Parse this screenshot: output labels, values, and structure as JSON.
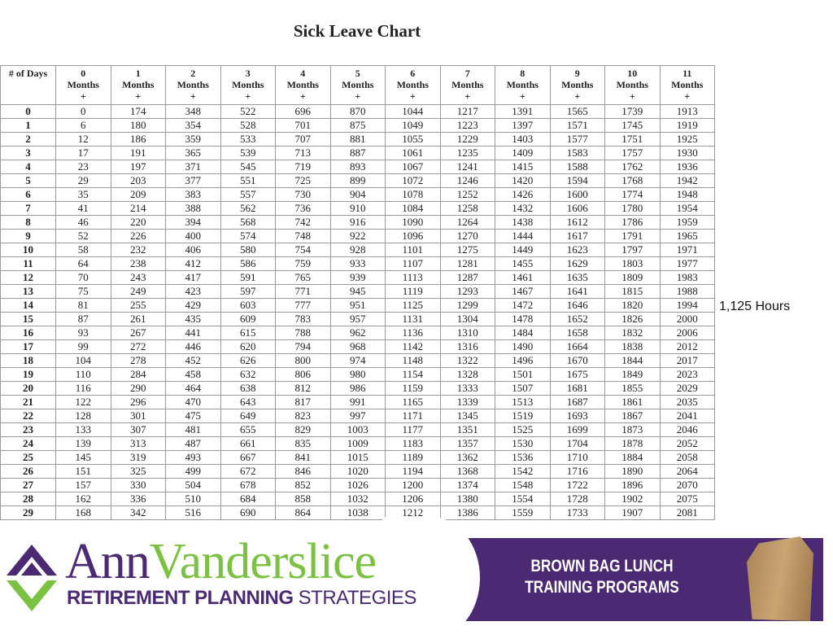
{
  "title": "Sick Leave Chart",
  "table": {
    "headers": [
      [
        "# of Days"
      ],
      [
        "0",
        "Months",
        "+"
      ],
      [
        "1",
        "Months",
        "+"
      ],
      [
        "2",
        "Months",
        "+"
      ],
      [
        "3",
        "Months",
        "+"
      ],
      [
        "4",
        "Months",
        "+"
      ],
      [
        "5",
        "Months",
        "+"
      ],
      [
        "6",
        "Months",
        "+"
      ],
      [
        "7",
        "Months",
        "+"
      ],
      [
        "8",
        "Months",
        "+"
      ],
      [
        "9",
        "Months",
        "+"
      ],
      [
        "10",
        "Months",
        "+"
      ],
      [
        "11",
        "Months",
        "+"
      ]
    ],
    "rows": [
      [
        "0",
        0,
        174,
        348,
        522,
        696,
        870,
        1044,
        1217,
        1391,
        1565,
        1739,
        1913
      ],
      [
        "1",
        6,
        180,
        354,
        528,
        701,
        875,
        1049,
        1223,
        1397,
        1571,
        1745,
        1919
      ],
      [
        "2",
        12,
        186,
        359,
        533,
        707,
        881,
        1055,
        1229,
        1403,
        1577,
        1751,
        1925
      ],
      [
        "3",
        17,
        191,
        365,
        539,
        713,
        887,
        1061,
        1235,
        1409,
        1583,
        1757,
        1930
      ],
      [
        "4",
        23,
        197,
        371,
        545,
        719,
        893,
        1067,
        1241,
        1415,
        1588,
        1762,
        1936
      ],
      [
        "5",
        29,
        203,
        377,
        551,
        725,
        899,
        1072,
        1246,
        1420,
        1594,
        1768,
        1942
      ],
      [
        "6",
        35,
        209,
        383,
        557,
        730,
        904,
        1078,
        1252,
        1426,
        1600,
        1774,
        1948
      ],
      [
        "7",
        41,
        214,
        388,
        562,
        736,
        910,
        1084,
        1258,
        1432,
        1606,
        1780,
        1954
      ],
      [
        "8",
        46,
        220,
        394,
        568,
        742,
        916,
        1090,
        1264,
        1438,
        1612,
        1786,
        1959
      ],
      [
        "9",
        52,
        226,
        400,
        574,
        748,
        922,
        1096,
        1270,
        1444,
        1617,
        1791,
        1965
      ],
      [
        "10",
        58,
        232,
        406,
        580,
        754,
        928,
        1101,
        1275,
        1449,
        1623,
        1797,
        1971
      ],
      [
        "11",
        64,
        238,
        412,
        586,
        759,
        933,
        1107,
        1281,
        1455,
        1629,
        1803,
        1977
      ],
      [
        "12",
        70,
        243,
        417,
        591,
        765,
        939,
        1113,
        1287,
        1461,
        1635,
        1809,
        1983
      ],
      [
        "13",
        75,
        249,
        423,
        597,
        771,
        945,
        1119,
        1293,
        1467,
        1641,
        1815,
        1988
      ],
      [
        "14",
        81,
        255,
        429,
        603,
        777,
        951,
        1125,
        1299,
        1472,
        1646,
        1820,
        1994
      ],
      [
        "15",
        87,
        261,
        435,
        609,
        783,
        957,
        1131,
        1304,
        1478,
        1652,
        1826,
        2000
      ],
      [
        "16",
        93,
        267,
        441,
        615,
        788,
        962,
        1136,
        1310,
        1484,
        1658,
        1832,
        2006
      ],
      [
        "17",
        99,
        272,
        446,
        620,
        794,
        968,
        1142,
        1316,
        1490,
        1664,
        1838,
        2012
      ],
      [
        "18",
        104,
        278,
        452,
        626,
        800,
        974,
        1148,
        1322,
        1496,
        1670,
        1844,
        2017
      ],
      [
        "19",
        110,
        284,
        458,
        632,
        806,
        980,
        1154,
        1328,
        1501,
        1675,
        1849,
        2023
      ],
      [
        "20",
        116,
        290,
        464,
        638,
        812,
        986,
        1159,
        1333,
        1507,
        1681,
        1855,
        2029
      ],
      [
        "21",
        122,
        296,
        470,
        643,
        817,
        991,
        1165,
        1339,
        1513,
        1687,
        1861,
        2035
      ],
      [
        "22",
        128,
        301,
        475,
        649,
        823,
        997,
        1171,
        1345,
        1519,
        1693,
        1867,
        2041
      ],
      [
        "23",
        133,
        307,
        481,
        655,
        829,
        1003,
        1177,
        1351,
        1525,
        1699,
        1873,
        2046
      ],
      [
        "24",
        139,
        313,
        487,
        661,
        835,
        1009,
        1183,
        1357,
        1530,
        1704,
        1878,
        2052
      ],
      [
        "25",
        145,
        319,
        493,
        667,
        841,
        1015,
        1189,
        1362,
        1536,
        1710,
        1884,
        2058
      ],
      [
        "26",
        151,
        325,
        499,
        672,
        846,
        1020,
        1194,
        1368,
        1542,
        1716,
        1890,
        2064
      ],
      [
        "27",
        157,
        330,
        504,
        678,
        852,
        1026,
        1200,
        1374,
        1548,
        1722,
        1896,
        2070
      ],
      [
        "28",
        162,
        336,
        510,
        684,
        858,
        1032,
        1206,
        1380,
        1554,
        1728,
        1902,
        2075
      ],
      [
        "29",
        168,
        342,
        516,
        690,
        864,
        1038,
        1212,
        1386,
        1559,
        1733,
        1907,
        2081
      ]
    ]
  },
  "note": "1,125 Hours",
  "banner": {
    "logo_first": "Ann",
    "logo_last": "Vanderslice",
    "tagline_bold": "RETIREMENT PLANNING",
    "tagline_regular": "STRATEGIES",
    "program_line1": "BROWN BAG LUNCH",
    "program_line2": "TRAINING PROGRAMS",
    "colors": {
      "purple": "#4b2a73",
      "green": "#7cc242",
      "bag": "#c9a574"
    },
    "icons": [
      "diamond-logo-icon",
      "paper-bag-icon"
    ]
  }
}
